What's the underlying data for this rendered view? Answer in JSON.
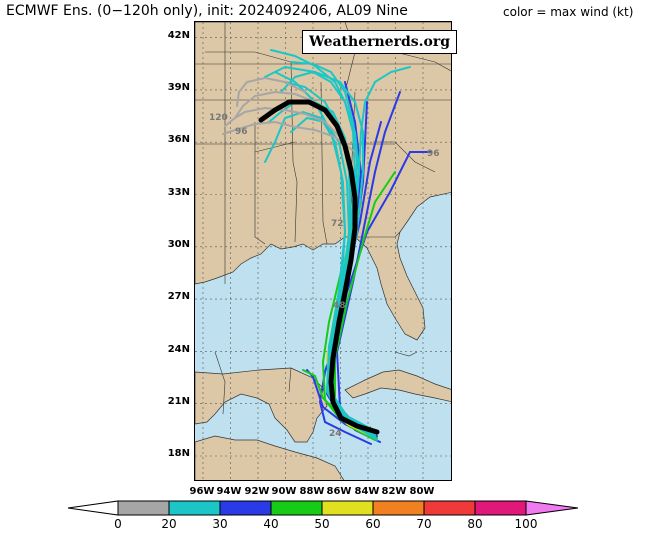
{
  "title": "ECMWF Ens. (0−120h only), init: 2024092406, AL09 Nine",
  "scale_note": "color = max wind (kt)",
  "watermark": "Weathernerds.org",
  "lat_labels": [
    "42N",
    "39N",
    "36N",
    "33N",
    "30N",
    "27N",
    "24N",
    "21N",
    "18N"
  ],
  "lon_labels": [
    "96W",
    "94W",
    "92W",
    "90W",
    "88W",
    "86W",
    "84W",
    "82W",
    "80W"
  ],
  "colorbar": {
    "ticks": [
      "0",
      "20",
      "30",
      "40",
      "50",
      "60",
      "70",
      "80",
      "100"
    ],
    "colors": [
      "#ffffff",
      "#a6a6a6",
      "#1cc6c6",
      "#2a3ae6",
      "#16cc16",
      "#e0e020",
      "#f08020",
      "#f03a3a",
      "#e0187a",
      "#f07af0"
    ]
  },
  "hour_labels": [
    "120",
    "96",
    "72",
    "48",
    "24"
  ],
  "colors": {
    "land": "#dcc8a6",
    "water": "#bfe0ee",
    "mean_track": "#000000"
  }
}
